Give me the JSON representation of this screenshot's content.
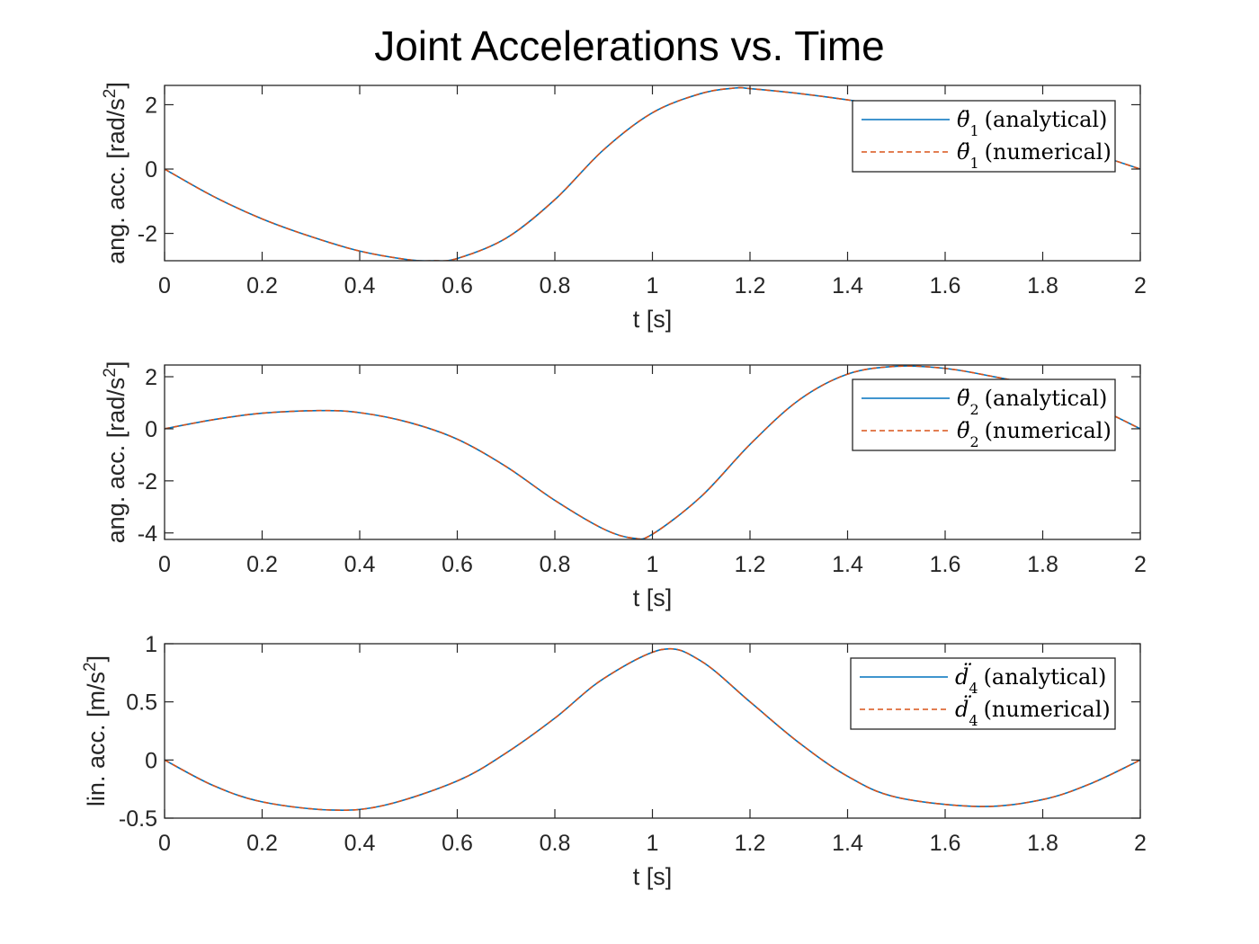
{
  "title": "Joint Accelerations vs. Time",
  "colors": {
    "analytical": "#0072BD",
    "numerical": "#D95319",
    "axes": "#262626",
    "background": "#ffffff"
  },
  "chart_data": [
    {
      "type": "line",
      "xlabel": "t [s]",
      "ylabel": "ang. acc. [rad/s",
      "ylabel_sup": "2",
      "ylabel_close": "]",
      "xlim": [
        0,
        2
      ],
      "ylim": [
        -2.85,
        2.6
      ],
      "xticks": [
        0,
        0.2,
        0.4,
        0.6,
        0.8,
        1,
        1.2,
        1.4,
        1.6,
        1.8,
        2
      ],
      "xtick_labels": [
        "0",
        "0.2",
        "0.4",
        "0.6",
        "0.8",
        "1",
        "1.2",
        "1.4",
        "1.6",
        "1.8",
        "2"
      ],
      "yticks": [
        -2,
        0,
        2
      ],
      "ytick_labels": [
        "-2",
        "0",
        "2"
      ],
      "grid": false,
      "legend_position": "top-right",
      "x": [
        0,
        0.1,
        0.2,
        0.3,
        0.4,
        0.5,
        0.55,
        0.6,
        0.7,
        0.8,
        0.9,
        1.0,
        1.1,
        1.17,
        1.2,
        1.3,
        1.4,
        1.5,
        1.6,
        1.7,
        1.8,
        1.9,
        2.0
      ],
      "series": [
        {
          "name": "(analytical)",
          "math_base": "θ̈",
          "math_sub": "1",
          "style": "solid",
          "values": [
            0,
            -0.85,
            -1.55,
            -2.1,
            -2.55,
            -2.82,
            -2.85,
            -2.78,
            -2.15,
            -0.95,
            0.6,
            1.75,
            2.35,
            2.52,
            2.5,
            2.35,
            2.15,
            1.9,
            1.7,
            1.4,
            1.0,
            0.5,
            0
          ]
        },
        {
          "name": "(numerical)",
          "math_base": "θ̈",
          "math_sub": "1",
          "style": "dashed",
          "values": [
            0,
            -0.85,
            -1.55,
            -2.1,
            -2.55,
            -2.82,
            -2.85,
            -2.78,
            -2.15,
            -0.95,
            0.6,
            1.75,
            2.35,
            2.52,
            2.5,
            2.35,
            2.15,
            1.9,
            1.7,
            1.4,
            1.0,
            0.5,
            0
          ]
        }
      ]
    },
    {
      "type": "line",
      "xlabel": "t [s]",
      "ylabel": "ang. acc. [rad/s",
      "ylabel_sup": "2",
      "ylabel_close": "]",
      "xlim": [
        0,
        2
      ],
      "ylim": [
        -4.25,
        2.45
      ],
      "xticks": [
        0,
        0.2,
        0.4,
        0.6,
        0.8,
        1,
        1.2,
        1.4,
        1.6,
        1.8,
        2
      ],
      "xtick_labels": [
        "0",
        "0.2",
        "0.4",
        "0.6",
        "0.8",
        "1",
        "1.2",
        "1.4",
        "1.6",
        "1.8",
        "2"
      ],
      "yticks": [
        -4,
        -2,
        0,
        2
      ],
      "ytick_labels": [
        "-4",
        "-2",
        "0",
        "2"
      ],
      "grid": false,
      "legend_position": "top-right",
      "x": [
        0,
        0.1,
        0.2,
        0.32,
        0.4,
        0.5,
        0.6,
        0.7,
        0.8,
        0.9,
        0.96,
        1.0,
        1.1,
        1.2,
        1.3,
        1.4,
        1.5,
        1.6,
        1.7,
        1.8,
        1.9,
        2.0
      ],
      "series": [
        {
          "name": "(analytical)",
          "math_base": "θ̈",
          "math_sub": "2",
          "style": "solid",
          "values": [
            0,
            0.35,
            0.6,
            0.7,
            0.62,
            0.25,
            -0.4,
            -1.45,
            -2.75,
            -3.85,
            -4.2,
            -4.05,
            -2.6,
            -0.6,
            1.1,
            2.1,
            2.4,
            2.32,
            2.0,
            1.6,
            0.9,
            0
          ]
        },
        {
          "name": "(numerical)",
          "math_base": "θ̈",
          "math_sub": "2",
          "style": "dashed",
          "values": [
            0,
            0.35,
            0.6,
            0.7,
            0.62,
            0.25,
            -0.4,
            -1.45,
            -2.75,
            -3.85,
            -4.2,
            -4.05,
            -2.6,
            -0.6,
            1.1,
            2.1,
            2.4,
            2.32,
            2.0,
            1.6,
            0.9,
            0
          ]
        }
      ]
    },
    {
      "type": "line",
      "xlabel": "t [s]",
      "ylabel": "lin. acc. [m/s",
      "ylabel_sup": "2",
      "ylabel_close": "]",
      "xlim": [
        0,
        2
      ],
      "ylim": [
        -0.5,
        1
      ],
      "xticks": [
        0,
        0.2,
        0.4,
        0.6,
        0.8,
        1,
        1.2,
        1.4,
        1.6,
        1.8,
        2
      ],
      "xtick_labels": [
        "0",
        "0.2",
        "0.4",
        "0.6",
        "0.8",
        "1",
        "1.2",
        "1.4",
        "1.6",
        "1.8",
        "2"
      ],
      "yticks": [
        -0.5,
        0,
        0.5,
        1
      ],
      "ytick_labels": [
        "-0.5",
        "0",
        "0.5",
        "1"
      ],
      "grid": false,
      "legend_position": "top-right",
      "x": [
        0,
        0.1,
        0.2,
        0.34,
        0.45,
        0.6,
        0.7,
        0.8,
        0.9,
        1.02,
        1.1,
        1.2,
        1.3,
        1.4,
        1.5,
        1.67,
        1.8,
        1.9,
        2.0
      ],
      "series": [
        {
          "name": "(analytical)",
          "math_base": "d̈",
          "math_sub": "4",
          "style": "solid",
          "values": [
            0,
            -0.22,
            -0.36,
            -0.43,
            -0.39,
            -0.18,
            0.06,
            0.36,
            0.7,
            0.95,
            0.85,
            0.5,
            0.15,
            -0.14,
            -0.32,
            -0.4,
            -0.34,
            -0.2,
            0
          ]
        },
        {
          "name": "(numerical)",
          "math_base": "d̈",
          "math_sub": "4",
          "style": "dashed",
          "values": [
            0,
            -0.22,
            -0.36,
            -0.43,
            -0.39,
            -0.18,
            0.06,
            0.36,
            0.7,
            0.95,
            0.85,
            0.5,
            0.15,
            -0.14,
            -0.32,
            -0.4,
            -0.34,
            -0.2,
            0
          ]
        }
      ]
    }
  ]
}
